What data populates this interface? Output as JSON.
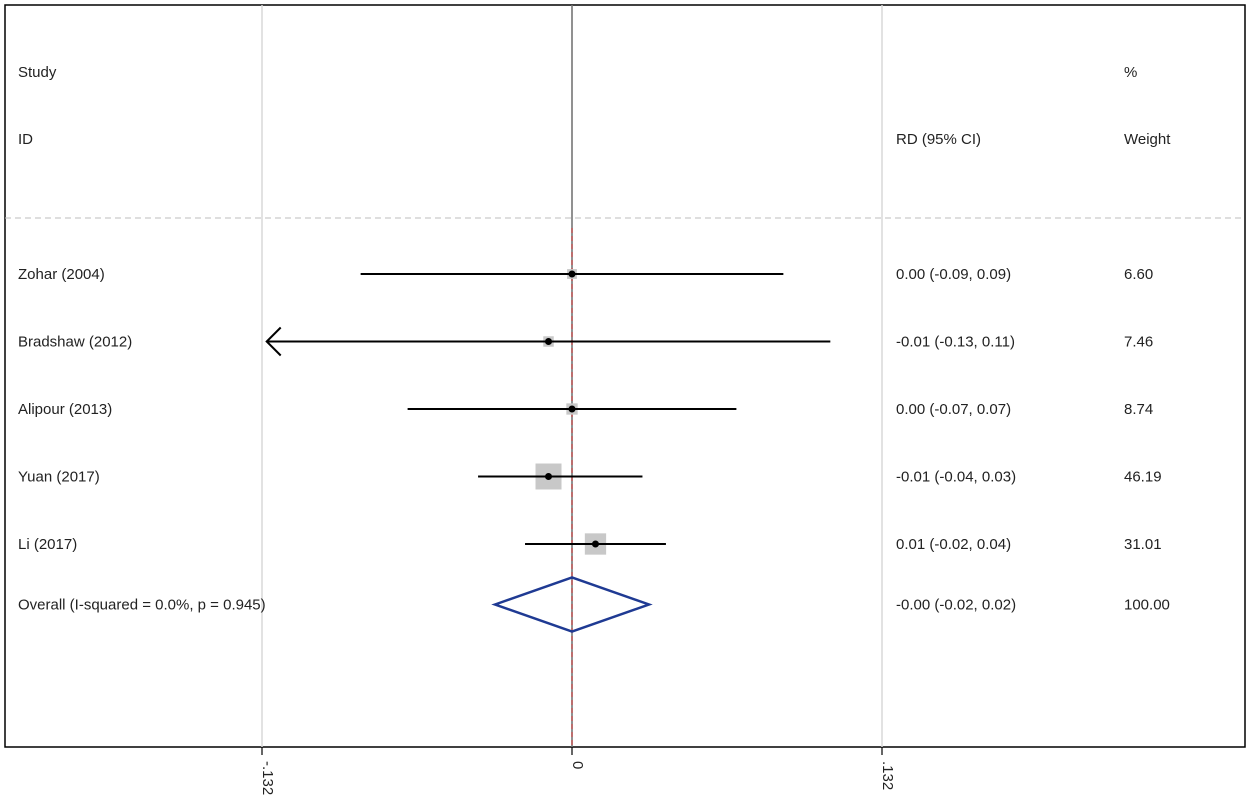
{
  "header": {
    "study_line1": "Study",
    "study_line2": "ID",
    "rd_header": "RD (95% CI)",
    "weight_line1": "%",
    "weight_line2": "Weight"
  },
  "chart_data": {
    "type": "forest",
    "xlabel": "",
    "xlim": [
      -0.132,
      0.132
    ],
    "ticks": [
      {
        "value": -0.132,
        "label": "-.132"
      },
      {
        "value": 0,
        "label": "0"
      },
      {
        "value": 0.132,
        "label": ".132"
      }
    ],
    "null_line": 0,
    "overall_line": -0.0,
    "grid": true,
    "studies": [
      {
        "label": "Zohar (2004)",
        "rd": 0.0,
        "lower": -0.09,
        "upper": 0.09,
        "ci_text": "0.00 (-0.09, 0.09)",
        "weight": "6.60",
        "arrow_left": false
      },
      {
        "label": "Bradshaw (2012)",
        "rd": -0.01,
        "lower": -0.13,
        "upper": 0.11,
        "ci_text": "-0.01 (-0.13, 0.11)",
        "weight": "7.46",
        "arrow_left": true
      },
      {
        "label": "Alipour (2013)",
        "rd": 0.0,
        "lower": -0.07,
        "upper": 0.07,
        "ci_text": "0.00 (-0.07, 0.07)",
        "weight": "8.74",
        "arrow_left": false
      },
      {
        "label": "Yuan (2017)",
        "rd": -0.01,
        "lower": -0.04,
        "upper": 0.03,
        "ci_text": "-0.01 (-0.04, 0.03)",
        "weight": "46.19",
        "arrow_left": false
      },
      {
        "label": "Li (2017)",
        "rd": 0.01,
        "lower": -0.02,
        "upper": 0.04,
        "ci_text": "0.01 (-0.02, 0.04)",
        "weight": "31.01",
        "arrow_left": false
      }
    ],
    "overall": {
      "label": "Overall  (I-squared = 0.0%, p = 0.945)",
      "rd": -0.0,
      "lower": -0.02,
      "upper": 0.02,
      "ci_text": "-0.00 (-0.02, 0.02)",
      "weight": "100.00"
    },
    "colors": {
      "ci_line": "#000000",
      "weight_box": "#c8c8c8",
      "diamond": "#1f3a93",
      "null_line": "#555555",
      "overall_line": "#b03030",
      "grid": "#d9d9d9",
      "frame": "#000000"
    }
  }
}
